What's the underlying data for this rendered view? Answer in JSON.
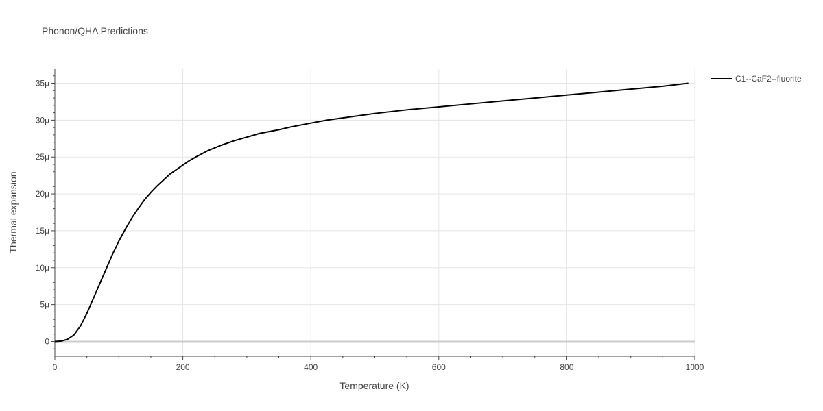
{
  "chart_data": {
    "type": "line",
    "title": "Phonon/QHA Predictions",
    "xlabel": "Temperature (K)",
    "ylabel": "Thermal expansion",
    "xlim": [
      0,
      1000
    ],
    "ylim": [
      -2e-06,
      3.7e-05
    ],
    "x_ticks": [
      {
        "value": 0,
        "label": "0"
      },
      {
        "value": 200,
        "label": "200"
      },
      {
        "value": 400,
        "label": "400"
      },
      {
        "value": 600,
        "label": "600"
      },
      {
        "value": 800,
        "label": "800"
      },
      {
        "value": 1000,
        "label": "1000"
      }
    ],
    "y_ticks": [
      {
        "value": 0,
        "label": "0"
      },
      {
        "value": 5e-06,
        "label": "5μ"
      },
      {
        "value": 1e-05,
        "label": "10μ"
      },
      {
        "value": 1.5e-05,
        "label": "15μ"
      },
      {
        "value": 2e-05,
        "label": "20μ"
      },
      {
        "value": 2.5e-05,
        "label": "25μ"
      },
      {
        "value": 3e-05,
        "label": "30μ"
      },
      {
        "value": 3.5e-05,
        "label": "35μ"
      }
    ],
    "grid": true,
    "legend_position": "top-right",
    "series": [
      {
        "name": "C1--CaF2--fluorite",
        "color": "#000000",
        "x": [
          0,
          10,
          20,
          30,
          40,
          50,
          60,
          70,
          80,
          90,
          100,
          110,
          120,
          130,
          140,
          150,
          160,
          170,
          180,
          190,
          200,
          210,
          220,
          240,
          260,
          280,
          300,
          320,
          350,
          370,
          400,
          425,
          450,
          475,
          500,
          550,
          600,
          650,
          700,
          750,
          800,
          850,
          900,
          950,
          990
        ],
        "y": [
          0,
          5e-08,
          3e-07,
          9e-07,
          2.1e-06,
          3.8e-06,
          5.8e-06,
          7.8e-06,
          9.8e-06,
          1.18e-05,
          1.36e-05,
          1.52e-05,
          1.67e-05,
          1.8e-05,
          1.92e-05,
          2.02e-05,
          2.11e-05,
          2.19e-05,
          2.27e-05,
          2.33e-05,
          2.39e-05,
          2.45e-05,
          2.5e-05,
          2.59e-05,
          2.66e-05,
          2.72e-05,
          2.77e-05,
          2.82e-05,
          2.87e-05,
          2.91e-05,
          2.96e-05,
          3e-05,
          3.03e-05,
          3.06e-05,
          3.09e-05,
          3.14e-05,
          3.18e-05,
          3.22e-05,
          3.26e-05,
          3.3e-05,
          3.34e-05,
          3.38e-05,
          3.42e-05,
          3.46e-05,
          3.5e-05
        ]
      }
    ]
  }
}
